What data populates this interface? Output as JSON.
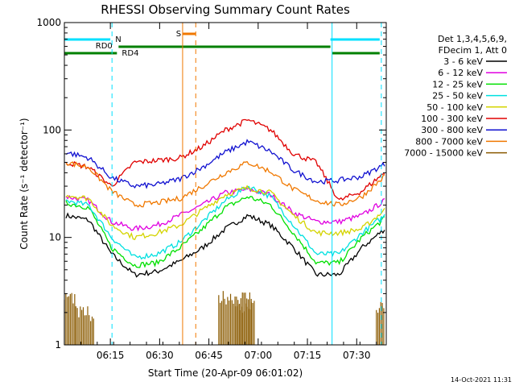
{
  "chart_data": {
    "type": "line",
    "title": "RHESSI Observing Summary Count Rates",
    "xlabel": "Start Time (20-Apr-09 06:01:02)",
    "ylabel": "Count Rate (s⁻¹ detector⁻¹)",
    "y_scale": "log",
    "ylim": [
      1,
      1000
    ],
    "xlim_min": [
      0,
      98
    ],
    "y_ticks": [
      "1",
      "10",
      "100",
      "1000"
    ],
    "x_ticks": [
      {
        "t": 14,
        "label": "06:15"
      },
      {
        "t": 29,
        "label": "06:30"
      },
      {
        "t": 44,
        "label": "06:45"
      },
      {
        "t": 59,
        "label": "07:00"
      },
      {
        "t": 74,
        "label": "07:15"
      },
      {
        "t": 89,
        "label": "07:30"
      }
    ],
    "legend_header": [
      "Det 1,3,4,5,6,9,",
      "FDecim 1, Att 0"
    ],
    "series": [
      {
        "name": "3 - 6 keV",
        "color": "#000000",
        "values": [
          16,
          14.5,
          7,
          4.5,
          4.8,
          6,
          8,
          12,
          16,
          13,
          8,
          4.5,
          4.5,
          8,
          12
        ]
      },
      {
        "name": "6 - 12 keV",
        "color": "#e000e0",
        "values": [
          24,
          22,
          14,
          12,
          13,
          16,
          20,
          26,
          28,
          25,
          17,
          14,
          14,
          16,
          22
        ]
      },
      {
        "name": "12 - 25 keV",
        "color": "#00e000",
        "values": [
          21,
          19,
          8,
          5.5,
          5.8,
          8,
          12,
          19,
          24,
          20,
          11,
          5.8,
          5.8,
          10,
          15
        ]
      },
      {
        "name": "25 - 50 keV",
        "color": "#00e0e0",
        "values": [
          22,
          20,
          10,
          6.5,
          7,
          9,
          14,
          22,
          30,
          24,
          13,
          7,
          7,
          11,
          16
        ]
      },
      {
        "name": "50 - 100 keV",
        "color": "#d4d400",
        "values": [
          25,
          23,
          13,
          10,
          11,
          13,
          18,
          25,
          29,
          26,
          16,
          11,
          11,
          12,
          18
        ]
      },
      {
        "name": "100 - 300 keV",
        "color": "#e00000",
        "values": [
          50,
          45,
          30,
          50,
          52,
          55,
          70,
          100,
          124,
          100,
          60,
          50,
          22,
          27,
          40
        ]
      },
      {
        "name": "300 - 800 keV",
        "color": "#1010d0",
        "values": [
          62,
          55,
          36,
          30,
          31,
          35,
          45,
          62,
          78,
          63,
          42,
          33,
          34,
          37,
          48
        ]
      },
      {
        "name": "800 - 7000 keV",
        "color": "#f07800",
        "values": [
          50,
          45,
          27,
          20,
          21,
          23,
          30,
          40,
          50,
          41,
          28,
          22,
          20,
          24,
          37
        ]
      },
      {
        "name": "7000 - 15000 keV",
        "color": "#8a5a00",
        "values": []
      }
    ],
    "annotations": [
      {
        "label": "N",
        "color": "#00e0ff"
      },
      {
        "label": "RD0",
        "color": "#008000"
      },
      {
        "label": "RD4",
        "color": "#008000"
      },
      {
        "label": "S",
        "color": "#f07800"
      }
    ]
  },
  "timestamp": "14-Oct-2021 11:31"
}
